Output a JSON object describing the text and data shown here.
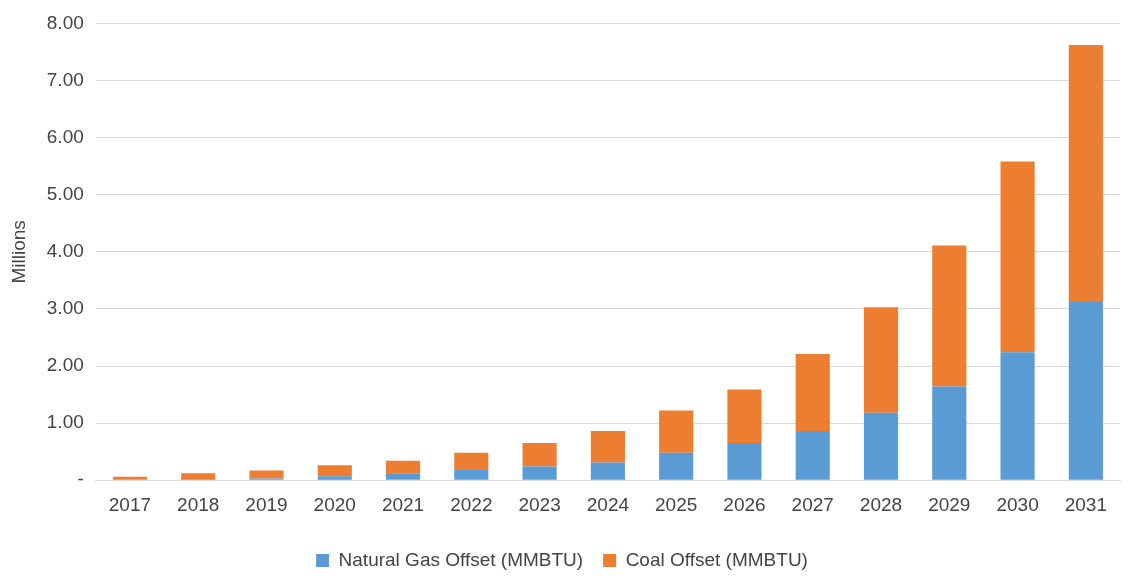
{
  "chart_data": {
    "type": "bar",
    "stacked": true,
    "ylabel": "Millions",
    "categories": [
      "2017",
      "2018",
      "2019",
      "2020",
      "2021",
      "2022",
      "2023",
      "2024",
      "2025",
      "2026",
      "2027",
      "2028",
      "2029",
      "2030",
      "2031"
    ],
    "series": [
      {
        "name": "Natural Gas Offset (MMBTU)",
        "color": "#5b9bd5",
        "values": [
          null,
          0.02,
          0.03,
          0.07,
          0.12,
          0.19,
          0.24,
          0.31,
          0.48,
          0.65,
          0.86,
          1.18,
          1.64,
          2.24,
          3.12
        ]
      },
      {
        "name": "Coal Offset (MMBTU)",
        "color": "#ed7d31",
        "values": [
          0.06,
          0.1,
          0.14,
          0.19,
          0.22,
          0.29,
          0.41,
          0.55,
          0.74,
          0.94,
          1.35,
          1.85,
          2.47,
          3.34,
          4.5
        ]
      }
    ],
    "ylim": [
      0,
      8
    ],
    "yticks": [
      {
        "value": 0,
        "label": "-"
      },
      {
        "value": 1,
        "label": "1.00"
      },
      {
        "value": 2,
        "label": "2.00"
      },
      {
        "value": 3,
        "label": "3.00"
      },
      {
        "value": 4,
        "label": "4.00"
      },
      {
        "value": 5,
        "label": "5.00"
      },
      {
        "value": 6,
        "label": "6.00"
      },
      {
        "value": 7,
        "label": "7.00"
      },
      {
        "value": 8,
        "label": "8.00"
      }
    ],
    "grid": "y",
    "legend": "bottom"
  }
}
